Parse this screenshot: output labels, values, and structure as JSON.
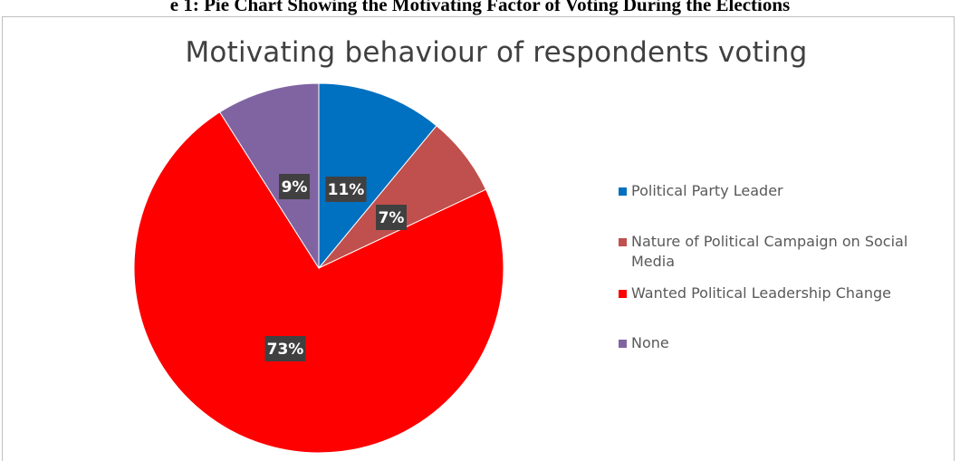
{
  "caption": "e 1: Pie Chart Showing the Motivating Factor of Voting During the Elections",
  "chart_data": {
    "type": "pie",
    "title": "Motivating behaviour of respondents voting",
    "slices": [
      {
        "label": "Political Party Leader",
        "value": 11,
        "display": "11%",
        "color": "#0070c0"
      },
      {
        "label": "Nature of Political Campaign on Social Media",
        "value": 7,
        "display": "7%",
        "color": "#c0504d"
      },
      {
        "label": "Wanted Political Leadership Change",
        "value": 73,
        "display": "73%",
        "color": "#ff0000"
      },
      {
        "label": "None",
        "value": 9,
        "display": "9%",
        "color": "#8064a2"
      }
    ],
    "start_angle": "12 o'clock",
    "direction": "clockwise",
    "legend_position": "right"
  }
}
